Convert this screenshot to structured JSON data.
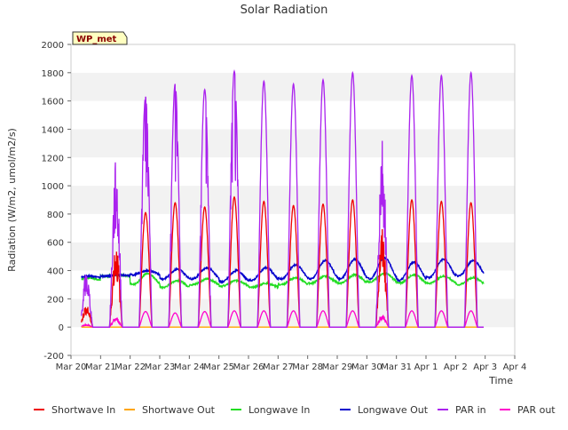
{
  "chart_data": {
    "type": "line",
    "title": "Solar Radiation",
    "xlabel": "Time",
    "ylabel": "Radiation (W/m2, umol/m2/s)",
    "ylim": [
      -200,
      2000
    ],
    "xlim": [
      0,
      15
    ],
    "yticks": [
      -200,
      0,
      200,
      400,
      600,
      800,
      1000,
      1200,
      1400,
      1600,
      1800,
      2000
    ],
    "xticks": [
      {
        "x": 0,
        "label": "Mar 20"
      },
      {
        "x": 1,
        "label": "Mar 21"
      },
      {
        "x": 2,
        "label": "Mar 22"
      },
      {
        "x": 3,
        "label": "Mar 23"
      },
      {
        "x": 4,
        "label": "Mar 24"
      },
      {
        "x": 5,
        "label": "Mar 25"
      },
      {
        "x": 6,
        "label": "Mar 26"
      },
      {
        "x": 7,
        "label": "Mar 27"
      },
      {
        "x": 8,
        "label": "Mar 28"
      },
      {
        "x": 9,
        "label": "Mar 29"
      },
      {
        "x": 10,
        "label": "Mar 30"
      },
      {
        "x": 11,
        "label": "Mar 31"
      },
      {
        "x": 12,
        "label": "Apr 1"
      },
      {
        "x": 13,
        "label": "Apr 2"
      },
      {
        "x": 14,
        "label": "Apr 3"
      },
      {
        "x": 15,
        "label": "Apr 4"
      }
    ],
    "x_unit": "days since Mar 20",
    "data_range": [
      0.35,
      13.95
    ],
    "site_label": "WP_met",
    "grid": "horizontal bands",
    "legend_position": "bottom",
    "series": [
      {
        "name": "Shortwave In",
        "color": "#ee0000",
        "daily_peak": [
          160,
          600,
          810,
          880,
          850,
          920,
          890,
          860,
          870,
          900,
          700,
          900,
          890,
          880
        ]
      },
      {
        "name": "Shortwave Out",
        "color": "#ffa500",
        "daily_peak": [
          0,
          0,
          0,
          0,
          0,
          0,
          0,
          0,
          0,
          0,
          0,
          0,
          0,
          0
        ]
      },
      {
        "name": "Longwave In",
        "color": "#22dd22",
        "daily_min": [
          330,
          360,
          300,
          280,
          300,
          290,
          280,
          300,
          310,
          310,
          320,
          310,
          310,
          300
        ],
        "daily_max": [
          350,
          370,
          380,
          330,
          340,
          330,
          310,
          350,
          360,
          370,
          380,
          370,
          360,
          350
        ]
      },
      {
        "name": "Longwave Out",
        "color": "#0000cc",
        "daily_min": [
          350,
          360,
          370,
          340,
          340,
          320,
          330,
          340,
          340,
          340,
          340,
          330,
          350,
          360
        ],
        "daily_max": [
          360,
          370,
          400,
          410,
          420,
          400,
          420,
          440,
          470,
          480,
          490,
          460,
          480,
          470
        ]
      },
      {
        "name": "PAR in",
        "color": "#aa22ee",
        "daily_peak": [
          390,
          1190,
          1630,
          1720,
          1680,
          1810,
          1740,
          1720,
          1750,
          1800,
          1380,
          1780,
          1780,
          1800
        ]
      },
      {
        "name": "PAR out",
        "color": "#ff00cc",
        "daily_peak": [
          20,
          70,
          110,
          100,
          110,
          115,
          115,
          115,
          115,
          115,
          90,
          115,
          115,
          115
        ]
      }
    ]
  }
}
